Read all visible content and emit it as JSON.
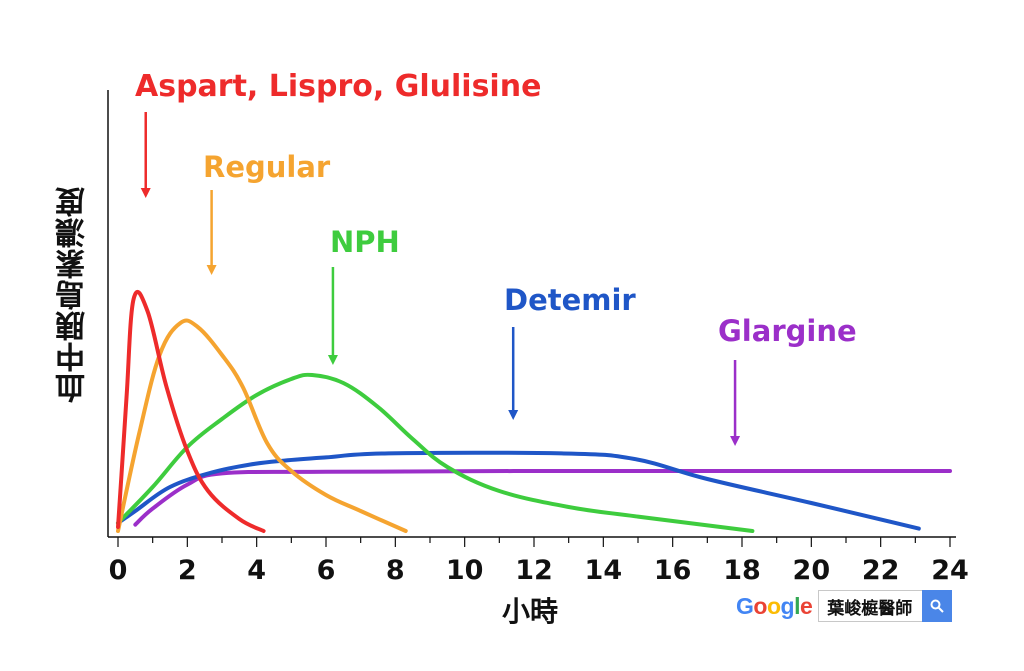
{
  "chart_data": {
    "type": "line",
    "title": "",
    "xlabel": "小時",
    "ylabel": "血中胰島素濃度",
    "xlim": [
      0,
      24
    ],
    "x_ticks": [
      "0",
      "2",
      "4",
      "6",
      "8",
      "10",
      "12",
      "14",
      "16",
      "18",
      "20",
      "22",
      "24"
    ],
    "y_ticks": [],
    "grid": false,
    "series": [
      {
        "name": "Aspart, Lispro, Glulisine",
        "color": "#ee2b2b",
        "x": [
          0,
          0.1,
          0.25,
          0.45,
          0.85,
          1.4,
          2.0,
          2.6,
          3.5,
          4.2
        ],
        "y": [
          0.5,
          7,
          17,
          29,
          27.5,
          18,
          10,
          5,
          1.5,
          0
        ]
      },
      {
        "name": "Regular",
        "color": "#f5a430",
        "x": [
          0,
          0.6,
          1.2,
          1.8,
          2.3,
          3.0,
          3.6,
          4.3,
          5.0,
          6.0,
          7.0,
          8.3
        ],
        "y": [
          0,
          12,
          22,
          26,
          25.5,
          22,
          18,
          11,
          7.5,
          4.5,
          2.5,
          0
        ]
      },
      {
        "name": "NPH",
        "color": "#3ecc3e",
        "x": [
          0,
          1,
          2,
          3,
          4,
          5,
          5.6,
          6.5,
          7.5,
          8.5,
          9.5,
          11,
          13,
          15,
          18.3
        ],
        "y": [
          1,
          5.5,
          10.5,
          14,
          17,
          19,
          19.5,
          18.5,
          15.5,
          11.5,
          8,
          5,
          3,
          1.8,
          0
        ]
      },
      {
        "name": "Detemir",
        "color": "#1f56c7",
        "x": [
          0,
          0.5,
          1.5,
          2.7,
          3.8,
          4.8,
          6.0,
          7.8,
          12.8,
          14.9,
          17,
          20,
          23.1
        ],
        "y": [
          1,
          2.5,
          5.5,
          7.3,
          8.3,
          8.8,
          9.2,
          9.7,
          9.7,
          9.0,
          6.5,
          3.5,
          0.3
        ]
      },
      {
        "name": "Glargine",
        "color": "#9b2fc9",
        "x": [
          0.5,
          1,
          2,
          3,
          6,
          12,
          18,
          24
        ],
        "y": [
          0.8,
          2.8,
          5.8,
          7.2,
          7.4,
          7.5,
          7.5,
          7.5
        ]
      }
    ],
    "annotations": [
      {
        "text": "Aspart, Lispro, Glulisine",
        "color": "#ee2b2b",
        "arrow_to_x": 0.8
      },
      {
        "text": "Regular",
        "color": "#f5a430",
        "arrow_to_x": 2.7
      },
      {
        "text": "NPH",
        "color": "#3ecc3e",
        "arrow_to_x": 6.2
      },
      {
        "text": "Detemir",
        "color": "#1f56c7",
        "arrow_to_x": 11.4
      },
      {
        "text": "Glargine",
        "color": "#9b2fc9",
        "arrow_to_x": 17.8
      }
    ]
  },
  "search_widget": {
    "logo_text": "Google",
    "query": "葉峻榳醫師",
    "icon": "search-icon"
  }
}
